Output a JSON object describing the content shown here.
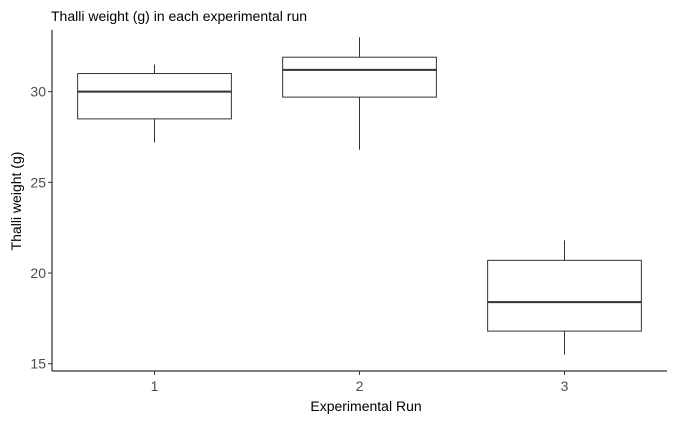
{
  "chart_data": {
    "type": "boxplot",
    "title": "Thalli weight (g) in each experimental run",
    "xlabel": "Experimental Run",
    "ylabel": "Thalli weight (g)",
    "categories": [
      "1",
      "2",
      "3"
    ],
    "y_ticks": [
      15,
      20,
      25,
      30
    ],
    "ylim": [
      14.6,
      33.4
    ],
    "grid": false,
    "legend": "none",
    "boxes": [
      {
        "category": "1",
        "min": 27.2,
        "q1": 28.5,
        "median": 30.0,
        "q3": 31.0,
        "max": 31.5
      },
      {
        "category": "2",
        "min": 26.8,
        "q1": 29.7,
        "median": 31.2,
        "q3": 31.9,
        "max": 33.0
      },
      {
        "category": "3",
        "min": 15.5,
        "q1": 16.8,
        "median": 18.4,
        "q3": 20.7,
        "max": 21.8
      }
    ]
  }
}
